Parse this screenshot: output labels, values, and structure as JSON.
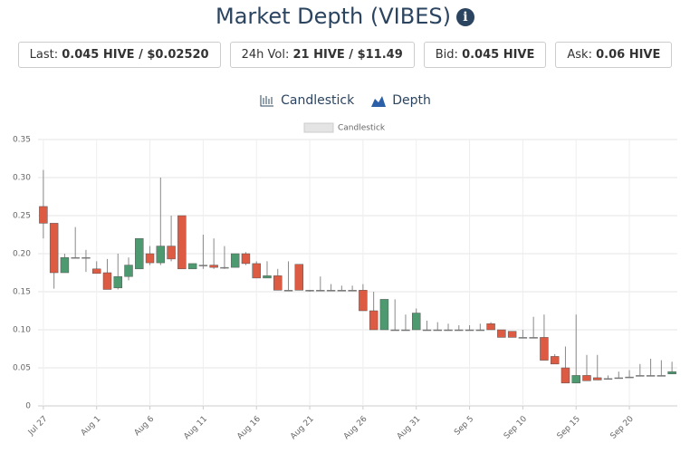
{
  "chart_data": {
    "type": "candlestick",
    "title": "Market Depth (VIBES)",
    "stats": [
      {
        "label": "Last:",
        "value": "0.045 HIVE / $0.02520"
      },
      {
        "label": "24h Vol:",
        "value": "21 HIVE / $11.49"
      },
      {
        "label": "Bid:",
        "value": "0.045 HIVE"
      },
      {
        "label": "Ask:",
        "value": "0.06 HIVE"
      }
    ],
    "tabs": [
      "Candlestick",
      "Depth"
    ],
    "legend_name": "Candlestick",
    "up_color": "#4e9a70",
    "down_color": "#dd5a43",
    "flat_color": "#777777",
    "grid": true,
    "ylim": [
      0,
      0.35
    ],
    "yticks": [
      0,
      0.05,
      {
        "value": 0.1,
        "label": "0.10"
      },
      0.15,
      {
        "value": 0.2,
        "label": "0.20"
      },
      0.25,
      {
        "value": 0.3,
        "label": "0.30"
      },
      0.35
    ],
    "categories": [
      "Jul 27",
      null,
      null,
      null,
      null,
      "Aug 1",
      null,
      null,
      null,
      null,
      "Aug 6",
      null,
      null,
      null,
      null,
      "Aug 11",
      null,
      null,
      null,
      null,
      "Aug 16",
      null,
      null,
      null,
      null,
      "Aug 21",
      null,
      null,
      null,
      null,
      "Aug 26",
      null,
      null,
      null,
      null,
      "Aug 31",
      null,
      null,
      null,
      null,
      "Sep 5",
      null,
      null,
      null,
      null,
      "Sep 10",
      null,
      null,
      null,
      null,
      "Sep 15",
      null,
      null,
      null,
      null,
      "Sep 20",
      null,
      null,
      null,
      null
    ],
    "open": [
      0.262,
      0.24,
      0.175,
      0.195,
      0.195,
      0.18,
      0.175,
      0.155,
      0.17,
      0.18,
      0.2,
      0.188,
      0.21,
      0.25,
      0.18,
      0.185,
      0.185,
      0.182,
      0.182,
      0.2,
      0.187,
      0.168,
      0.171,
      0.152,
      0.186,
      0.152,
      0.152,
      0.152,
      0.152,
      0.152,
      0.152,
      0.125,
      0.1,
      0.1,
      0.1,
      0.1,
      0.1,
      0.1,
      0.1,
      0.1,
      0.1,
      0.1,
      0.108,
      0.1,
      0.098,
      0.09,
      0.09,
      0.09,
      0.065,
      0.05,
      0.03,
      0.04,
      0.037,
      0.036,
      0.037,
      0.038,
      0.04,
      0.04,
      0.04,
      0.042
    ],
    "high": [
      0.31,
      0.24,
      0.2,
      0.235,
      0.205,
      0.19,
      0.193,
      0.2,
      0.195,
      0.22,
      0.21,
      0.3,
      0.25,
      0.25,
      0.187,
      0.225,
      0.22,
      0.21,
      0.2,
      0.202,
      0.19,
      0.19,
      0.18,
      0.19,
      0.186,
      0.152,
      0.17,
      0.16,
      0.158,
      0.158,
      0.16,
      0.15,
      0.14,
      0.14,
      0.12,
      0.128,
      0.112,
      0.11,
      0.108,
      0.106,
      0.106,
      0.108,
      0.11,
      0.1,
      0.098,
      0.1,
      0.117,
      0.12,
      0.068,
      0.078,
      0.12,
      0.067,
      0.067,
      0.04,
      0.045,
      0.047,
      0.055,
      0.062,
      0.06,
      0.058
    ],
    "low": [
      0.22,
      0.154,
      0.175,
      0.195,
      0.176,
      0.174,
      0.153,
      0.153,
      0.165,
      0.18,
      0.185,
      0.185,
      0.19,
      0.18,
      0.18,
      0.18,
      0.18,
      0.18,
      0.182,
      0.185,
      0.168,
      0.168,
      0.152,
      0.152,
      0.152,
      0.15,
      0.152,
      0.152,
      0.152,
      0.152,
      0.125,
      0.1,
      0.1,
      0.1,
      0.1,
      0.1,
      0.1,
      0.1,
      0.1,
      0.1,
      0.1,
      0.1,
      0.1,
      0.09,
      0.09,
      0.09,
      0.09,
      0.06,
      0.055,
      0.03,
      0.03,
      0.033,
      0.034,
      0.036,
      0.037,
      0.038,
      0.04,
      0.04,
      0.04,
      0.042
    ],
    "close": [
      0.24,
      0.175,
      0.195,
      0.195,
      0.195,
      0.174,
      0.153,
      0.17,
      0.185,
      0.22,
      0.188,
      0.21,
      0.193,
      0.18,
      0.187,
      0.185,
      0.182,
      0.182,
      0.2,
      0.187,
      0.168,
      0.171,
      0.152,
      0.152,
      0.152,
      0.152,
      0.152,
      0.152,
      0.152,
      0.152,
      0.125,
      0.1,
      0.14,
      0.1,
      0.1,
      0.122,
      0.1,
      0.1,
      0.1,
      0.1,
      0.1,
      0.1,
      0.1,
      0.09,
      0.09,
      0.09,
      0.09,
      0.06,
      0.055,
      0.03,
      0.04,
      0.033,
      0.034,
      0.036,
      0.037,
      0.038,
      0.04,
      0.04,
      0.04,
      0.045
    ]
  }
}
